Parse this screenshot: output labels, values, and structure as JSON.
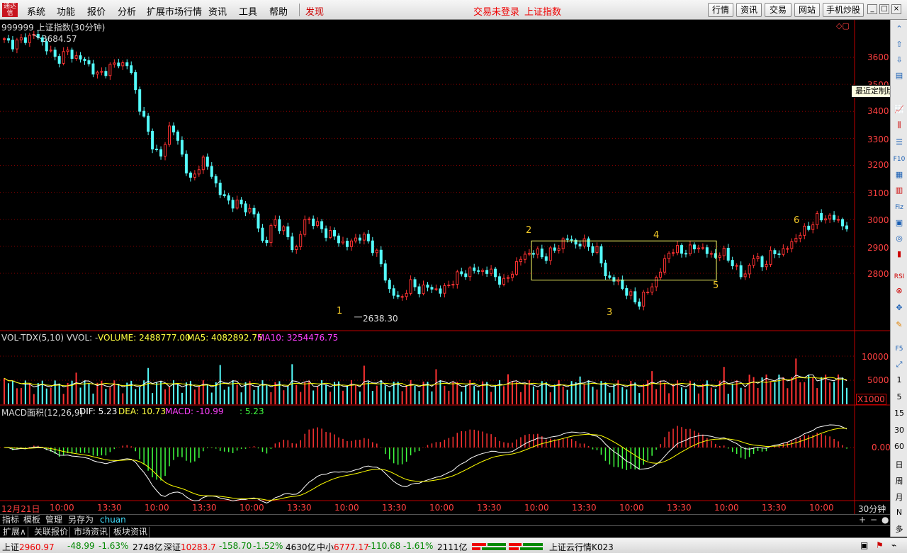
{
  "menubar": {
    "items": [
      "系统",
      "功能",
      "报价",
      "分析",
      "扩展市场行情",
      "资讯",
      "工具",
      "帮助"
    ],
    "faxian": "发现",
    "status_trade": "交易未登录",
    "status_index": "上证指数",
    "right_buttons": [
      "行情",
      "资讯",
      "交易",
      "网站",
      "手机炒股"
    ],
    "logo_text": "通达信"
  },
  "main_pane": {
    "title": "999999 上证指数(30分钟)",
    "y_ticks": [
      "3600",
      "3500",
      "3400",
      "3300",
      "3200",
      "3100",
      "3000",
      "2900",
      "2800"
    ],
    "high_label": "3684.57",
    "low_label": "2638.30",
    "wave_labels": [
      "1",
      "2",
      "3",
      "4",
      "5",
      "6"
    ]
  },
  "vol_pane": {
    "title": "VOL-TDX(5,10) VVOL: -",
    "volume_text": "VOLUME: 2488777.00",
    "ma5_text": "MA5: 4082892.75",
    "ma10_text": "MA10: 3254476.75",
    "y_ticks": [
      "10000",
      "5000"
    ],
    "unit": "X1000"
  },
  "macd_pane": {
    "title": "MACD面积(12,26,9)",
    "dif_text": "DIF: 5.23",
    "dea_text": "DEA: 10.73",
    "macd_text": "MACD: -10.99",
    "extra_text": ": 5.23",
    "y_tick": "0.00"
  },
  "x_axis": {
    "labels": [
      "12月21日",
      "10:00",
      "13:30",
      "10:00",
      "13:30",
      "10:00",
      "13:30",
      "10:00",
      "13:30",
      "10:00",
      "13:30",
      "10:00",
      "13:30",
      "10:00",
      "13:30",
      "10:00",
      "13:30",
      "10:00"
    ],
    "period": "30分钟"
  },
  "tooltip": "最近定制版面",
  "right_toolbar": {
    "icons": [
      "up-icon",
      "up-arrow-icon",
      "down-arrow-icon",
      "layout-icon",
      "line-chart-icon",
      "candle-icon",
      "f10-icon",
      "rsi-icon"
    ],
    "f10_label": "F10",
    "fiz_label": "Fiz",
    "rsi_label": "RSI",
    "f5_label": "F5",
    "period_numbers": [
      "1",
      "5",
      "15",
      "30",
      "60"
    ],
    "period_words": [
      "日",
      "周",
      "月",
      "N",
      "多"
    ]
  },
  "tabs_row1": [
    "指标",
    "模板",
    "管理",
    "另存为",
    "chuan"
  ],
  "tabs_row2": [
    "扩展∧",
    "关联报价",
    "市场资讯",
    "板块资讯"
  ],
  "statusbar": {
    "sh_label": "上证",
    "sh_value": "2960.97",
    "sh_change": "-48.99",
    "sh_pct": "-1.63%",
    "sh_amount": "2748亿",
    "sz_label": "深证",
    "sz_value": "10283.7",
    "sz_change": "-158.70",
    "sz_pct": "-1.52%",
    "sz_amount": "4630亿",
    "zx_label": "中小",
    "zx_value": "6777.17",
    "zx_change": "-110.68",
    "zx_pct": "-1.61%",
    "zx_amount": "2111亿",
    "cloud": "上证云行情K023"
  },
  "colors": {
    "up": "#ff3232",
    "down": "#54fcfc",
    "ma5": "#ffffff",
    "ma10": "#ffff00",
    "macd_label": "#ff00ff",
    "grid": "#8b0000",
    "box": "#ffff66"
  },
  "chart_data": {
    "type": "candlestick-30min",
    "y_range": [
      2600,
      3700
    ],
    "close_path": [
      3660,
      3650,
      3670,
      3685,
      3640,
      3590,
      3620,
      3600,
      3580,
      3530,
      3560,
      3580,
      3570,
      3420,
      3300,
      3220,
      3360,
      3250,
      3130,
      3230,
      3160,
      3080,
      3060,
      3050,
      3020,
      2900,
      3000,
      2950,
      2880,
      3010,
      2980,
      2950,
      2930,
      2900,
      2940,
      2920,
      2860,
      2740,
      2700,
      2760,
      2740,
      2750,
      2730,
      2770,
      2800,
      2810,
      2810,
      2800,
      2760,
      2820,
      2870,
      2880,
      2860,
      2890,
      2930,
      2910,
      2910,
      2880,
      2780,
      2770,
      2720,
      2690,
      2740,
      2800,
      2890,
      2880,
      2890,
      2900,
      2860,
      2880,
      2840,
      2780,
      2860,
      2830,
      2880,
      2880,
      2930,
      2960,
      3000,
      3010,
      3000,
      2970
    ],
    "volume_range": [
      0,
      12000
    ],
    "macd_range": [
      -90,
      40
    ]
  }
}
